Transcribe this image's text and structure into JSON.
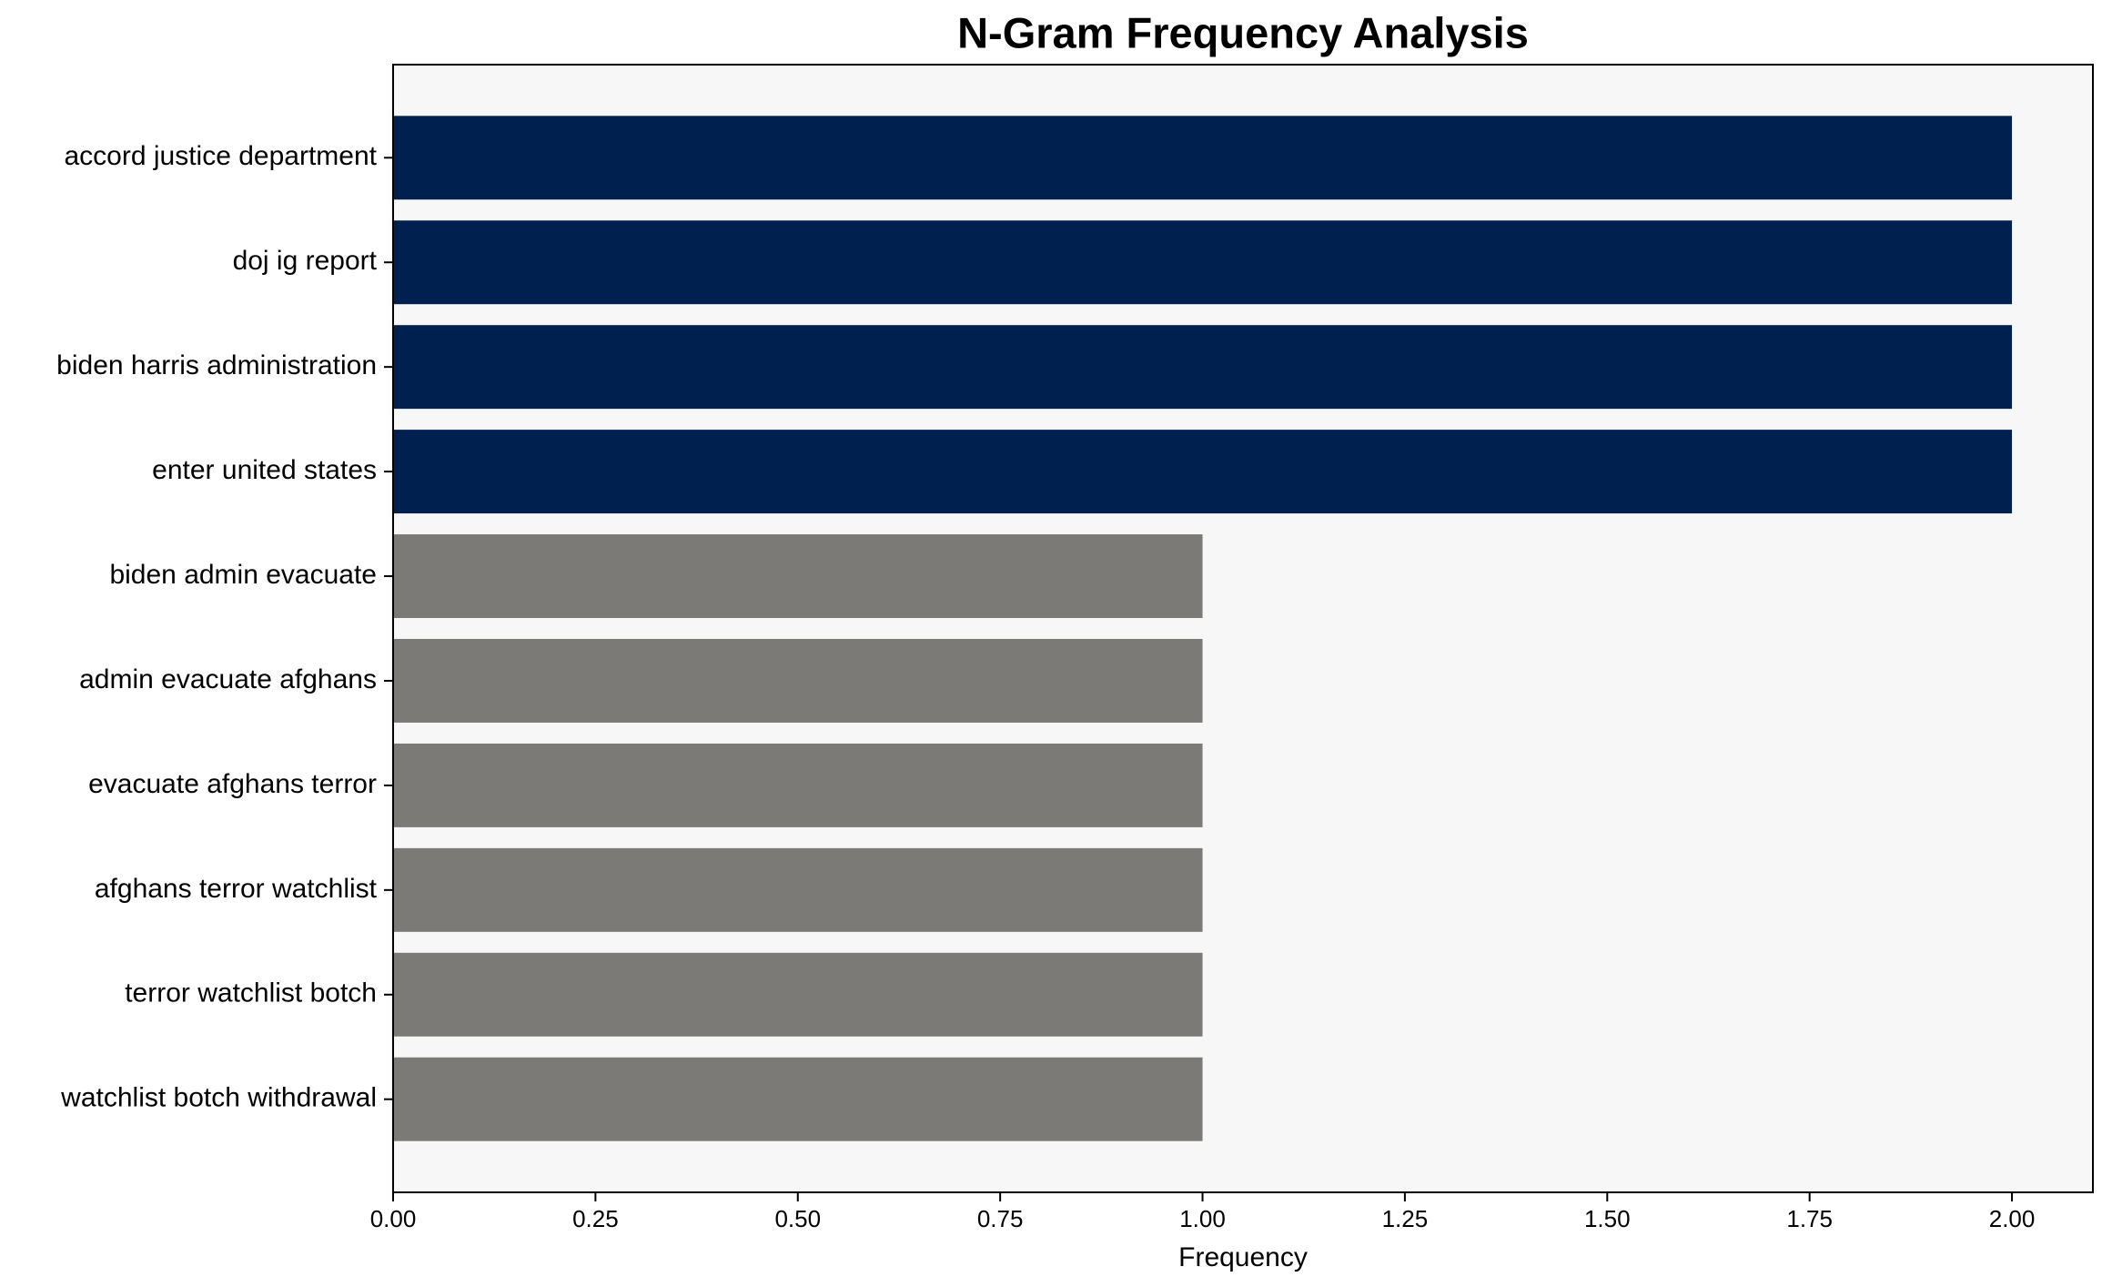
{
  "chart_data": {
    "type": "barh",
    "title": "N-Gram Frequency Analysis",
    "x_label": "Frequency",
    "categories": [
      "accord justice department",
      "doj ig report",
      "biden harris administration",
      "enter united states",
      "biden admin evacuate",
      "admin evacuate afghans",
      "evacuate afghans terror",
      "afghans terror watchlist",
      "terror watchlist botch",
      "watchlist botch withdrawal"
    ],
    "values": [
      2,
      2,
      2,
      2,
      1,
      1,
      1,
      1,
      1,
      1
    ],
    "colors": [
      "#00214f",
      "#00214f",
      "#00214f",
      "#00214f",
      "#7b7a76",
      "#7b7a76",
      "#7b7a76",
      "#7b7a76",
      "#7b7a76",
      "#7b7a76"
    ],
    "xlim": [
      0,
      2.1
    ],
    "xticks": [
      {
        "value": 0,
        "label": "0.00"
      },
      {
        "value": 0.25,
        "label": "0.25"
      },
      {
        "value": 0.5,
        "label": "0.50"
      },
      {
        "value": 0.75,
        "label": "0.75"
      },
      {
        "value": 1,
        "label": "1.00"
      },
      {
        "value": 1.25,
        "label": "1.25"
      },
      {
        "value": 1.5,
        "label": "1.50"
      },
      {
        "value": 1.75,
        "label": "1.75"
      },
      {
        "value": 2,
        "label": "2.00"
      }
    ],
    "background": "#f7f7f7"
  }
}
